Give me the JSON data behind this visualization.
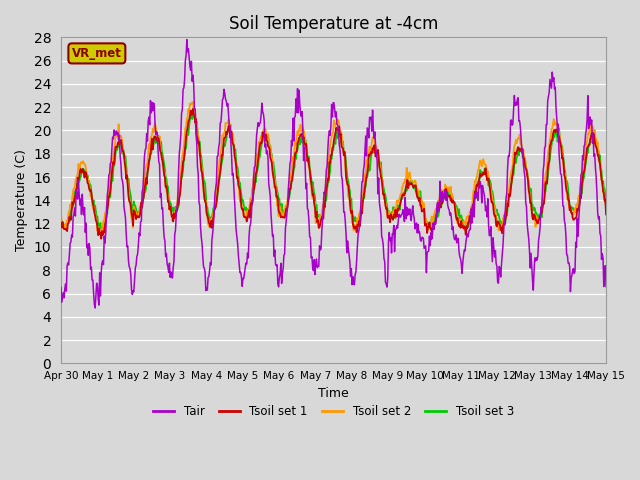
{
  "title": "Soil Temperature at -4cm",
  "xlabel": "Time",
  "ylabel": "Temperature (C)",
  "ylim": [
    0,
    28
  ],
  "yticks": [
    0,
    2,
    4,
    6,
    8,
    10,
    12,
    14,
    16,
    18,
    20,
    22,
    24,
    26,
    28
  ],
  "bg_color": "#d8d8d8",
  "plot_bg_color": "#d8d8d8",
  "line_colors": {
    "Tair": "#aa00cc",
    "Tsoil set 1": "#cc0000",
    "Tsoil set 2": "#ff9900",
    "Tsoil set 3": "#00cc00"
  },
  "legend_text": "VR_met",
  "legend_box_facecolor": "#cccc00",
  "legend_box_edgecolor": "#8B0000",
  "n_days": 15,
  "pts_per_day": 48,
  "daily_amp_air": [
    9,
    14,
    14,
    20,
    16,
    14,
    15,
    14,
    14,
    3,
    5,
    6,
    15,
    16,
    14
  ],
  "daily_mean_air": [
    10,
    13,
    15,
    17,
    15,
    14,
    15,
    15,
    14,
    12,
    12,
    12,
    15,
    16,
    14
  ],
  "daily_amp_soil": [
    5,
    8,
    7,
    9,
    8,
    7,
    7,
    8,
    7,
    3,
    3,
    5,
    7,
    8,
    7
  ],
  "daily_mean_soil": [
    14,
    15,
    16,
    17,
    16,
    16,
    16,
    16,
    15,
    14,
    13,
    14,
    15,
    16,
    16
  ]
}
